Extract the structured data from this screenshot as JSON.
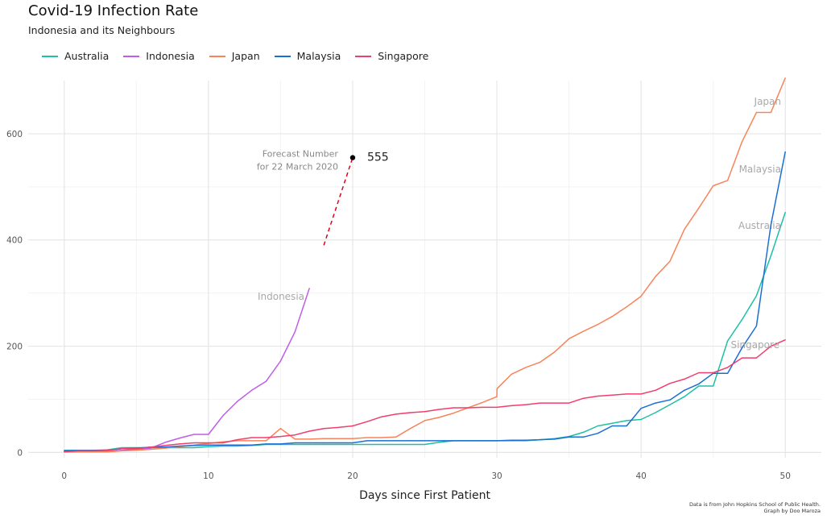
{
  "title": "Covid-19 Infection Rate",
  "subtitle": "Indonesia and its Neighbours",
  "caption_line1": "Data is from John Hopkins School of Public Health.",
  "caption_line2": "Graph by Doo Maroza",
  "chart_data": {
    "type": "line",
    "xlabel": "Days since First Patient",
    "ylabel": "",
    "xlim": [
      -2.5,
      52.5
    ],
    "ylim": [
      -10,
      700
    ],
    "x_ticks": [
      0,
      10,
      20,
      30,
      40,
      50
    ],
    "y_ticks": [
      0,
      200,
      400,
      600
    ],
    "grid": true,
    "legend_position": "top-left",
    "series": [
      {
        "name": "Australia",
        "color": "#1ebfa5",
        "label": "Australia",
        "x": [
          0,
          1,
          2,
          3,
          4,
          5,
          6,
          7,
          8,
          9,
          10,
          11,
          12,
          13,
          14,
          15,
          16,
          17,
          18,
          19,
          20,
          21,
          22,
          23,
          24,
          25,
          26,
          27,
          28,
          29,
          30,
          31,
          32,
          33,
          34,
          35,
          36,
          37,
          38,
          39,
          40,
          41,
          42,
          43,
          44,
          45,
          46,
          47,
          48,
          49,
          50
        ],
        "y": [
          4,
          4,
          4,
          5,
          9,
          9,
          9,
          9,
          9,
          9,
          11,
          12,
          12,
          13,
          15,
          15,
          15,
          15,
          15,
          15,
          15,
          15,
          15,
          15,
          15,
          15,
          19,
          22,
          22,
          22,
          22,
          22,
          22,
          24,
          26,
          30,
          38,
          50,
          55,
          60,
          62,
          75,
          90,
          105,
          125,
          125,
          210,
          250,
          295,
          370,
          452
        ]
      },
      {
        "name": "Indonesia",
        "color": "#c05cec",
        "label": "Indonesia",
        "x": [
          0,
          1,
          2,
          3,
          4,
          5,
          6,
          7,
          8,
          9,
          10,
          11,
          12,
          13,
          14,
          15,
          16,
          17
        ],
        "y": [
          2,
          2,
          2,
          2,
          4,
          6,
          8,
          19,
          27,
          34,
          34,
          69,
          96,
          117,
          134,
          172,
          227,
          309
        ]
      },
      {
        "name": "Japan",
        "color": "#f7845a",
        "label": "Japan",
        "x": [
          0,
          1,
          2,
          3,
          4,
          5,
          6,
          7,
          8,
          9,
          10,
          11,
          12,
          13,
          14,
          15,
          16,
          17,
          18,
          19,
          20,
          21,
          22,
          23,
          24,
          25,
          26,
          27,
          28,
          29,
          30,
          30.01,
          31,
          32,
          33,
          34,
          35,
          36,
          37,
          38,
          39,
          40,
          41,
          42,
          43,
          44,
          45,
          46,
          47,
          48,
          49,
          50
        ],
        "y": [
          1,
          1,
          1,
          1,
          3,
          4,
          6,
          8,
          11,
          14,
          17,
          20,
          22,
          22,
          22,
          45,
          25,
          25,
          26,
          26,
          26,
          28,
          28,
          29,
          45,
          60,
          66,
          74,
          84,
          94,
          105,
          120,
          147,
          160,
          170,
          189,
          214,
          228,
          241,
          256,
          274,
          294,
          331,
          360,
          420,
          460,
          502,
          512,
          585,
          640,
          640,
          705
        ]
      },
      {
        "name": "Malaysia",
        "color": "#1a6fd4",
        "label": "Malaysia",
        "x": [
          0,
          1,
          2,
          3,
          4,
          5,
          6,
          7,
          8,
          9,
          10,
          11,
          12,
          13,
          14,
          15,
          16,
          17,
          18,
          19,
          20,
          21,
          22,
          23,
          24,
          25,
          26,
          27,
          28,
          29,
          30,
          31,
          32,
          33,
          34,
          35,
          36,
          37,
          38,
          39,
          40,
          41,
          42,
          43,
          44,
          45,
          46,
          47,
          48,
          49,
          50
        ],
        "y": [
          3,
          4,
          4,
          4,
          7,
          8,
          10,
          10,
          12,
          13,
          14,
          14,
          14,
          14,
          16,
          16,
          18,
          18,
          18,
          18,
          18,
          22,
          22,
          22,
          22,
          22,
          22,
          22,
          22,
          22,
          22,
          23,
          23,
          24,
          25,
          29,
          29,
          36,
          50,
          50,
          83,
          93,
          99,
          117,
          129,
          149,
          149,
          197,
          238,
          428,
          566
        ]
      },
      {
        "name": "Singapore",
        "color": "#f03e6d",
        "label": "Singapore",
        "x": [
          0,
          1,
          2,
          3,
          4,
          5,
          6,
          7,
          8,
          9,
          10,
          11,
          12,
          13,
          14,
          15,
          16,
          17,
          18,
          19,
          20,
          21,
          22,
          23,
          24,
          25,
          26,
          27,
          28,
          29,
          30,
          31,
          32,
          33,
          34,
          35,
          36,
          37,
          38,
          39,
          40,
          41,
          42,
          43,
          44,
          45,
          46,
          47,
          48,
          49,
          50
        ],
        "y": [
          1,
          3,
          3,
          4,
          7,
          7,
          10,
          13,
          16,
          18,
          18,
          18,
          24,
          28,
          28,
          30,
          33,
          40,
          45,
          47,
          50,
          58,
          67,
          72,
          75,
          77,
          81,
          84,
          84,
          85,
          85,
          88,
          90,
          93,
          93,
          93,
          102,
          106,
          108,
          110,
          110,
          117,
          130,
          138,
          150,
          150,
          160,
          178,
          178,
          200,
          212
        ]
      }
    ],
    "forecast": {
      "point": {
        "x": 20,
        "y": 555
      },
      "line_start": {
        "x": 18,
        "y": 390
      },
      "value_label": "555",
      "label_line1": "Forecast Number",
      "label_line2": "for 22 March 2020"
    }
  }
}
